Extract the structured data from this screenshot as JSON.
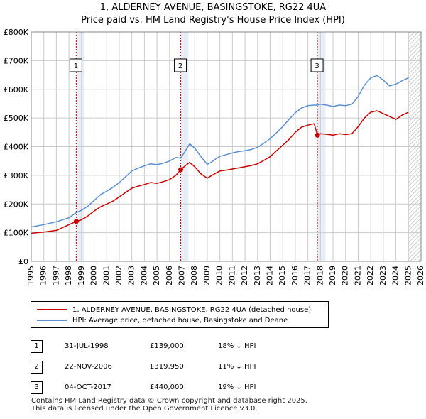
{
  "header": {
    "title": "1, ALDERNEY AVENUE, BASINGSTOKE, RG22 4UA",
    "subtitle": "Price paid vs. HM Land Registry's House Price Index (HPI)"
  },
  "colors": {
    "property": "#cc0000",
    "hpi": "#5b8fd4",
    "shade": "#e8eef8",
    "grid": "#cccccc"
  },
  "chart_data": {
    "type": "line",
    "title": "1, ALDERNEY AVENUE, BASINGSTOKE, RG22 4UA",
    "subtitle": "Price paid vs. HM Land Registry's House Price Index (HPI)",
    "xlim": [
      1995,
      2026
    ],
    "ylim": [
      0,
      800000
    ],
    "y_ticks": [
      0,
      100000,
      200000,
      300000,
      400000,
      500000,
      600000,
      700000,
      800000
    ],
    "y_tick_labels": [
      "£0",
      "£100K",
      "£200K",
      "£300K",
      "£400K",
      "£500K",
      "£600K",
      "£700K",
      "£800K"
    ],
    "x_ticks": [
      1995,
      1996,
      1997,
      1998,
      1999,
      2000,
      2001,
      2002,
      2003,
      2004,
      2005,
      2006,
      2007,
      2008,
      2009,
      2010,
      2011,
      2012,
      2013,
      2014,
      2015,
      2016,
      2017,
      2018,
      2019,
      2020,
      2021,
      2022,
      2023,
      2024,
      2025,
      2026
    ],
    "x_tick_labels": [
      "1995",
      "1996",
      "1997",
      "1998",
      "1999",
      "2000",
      "2001",
      "2002",
      "2003",
      "2004",
      "2005",
      "2006",
      "2007",
      "2008",
      "2009",
      "2010",
      "2011",
      "2012",
      "2013",
      "2014",
      "2015",
      "2016",
      "2017",
      "2018",
      "2019",
      "2020",
      "2021",
      "2022",
      "2023",
      "2024",
      "2025",
      "2026"
    ],
    "grid": true,
    "series": [
      {
        "name": "1, ALDERNEY AVENUE, BASINGSTOKE, RG22 4UA (detached house)",
        "color": "#cc0000",
        "x": [
          1995.0,
          1996.0,
          1997.0,
          1997.5,
          1998.0,
          1998.58,
          1999.0,
          1999.5,
          2000.0,
          2000.5,
          2001.0,
          2001.5,
          2002.0,
          2002.5,
          2003.0,
          2003.5,
          2004.0,
          2004.5,
          2005.0,
          2005.5,
          2006.0,
          2006.5,
          2006.89,
          2007.3,
          2007.6,
          2008.0,
          2008.5,
          2009.0,
          2009.3,
          2009.7,
          2010.0,
          2010.5,
          2011.0,
          2011.5,
          2012.0,
          2012.5,
          2013.0,
          2013.5,
          2014.0,
          2014.5,
          2015.0,
          2015.5,
          2016.0,
          2016.5,
          2017.0,
          2017.5,
          2017.76,
          2018.0,
          2018.5,
          2019.0,
          2019.5,
          2020.0,
          2020.5,
          2021.0,
          2021.5,
          2022.0,
          2022.5,
          2023.0,
          2023.5,
          2024.0,
          2024.5,
          2025.0
        ],
        "values": [
          98000,
          102000,
          108000,
          118000,
          128000,
          139000,
          145000,
          158000,
          175000,
          190000,
          200000,
          210000,
          225000,
          240000,
          255000,
          262000,
          268000,
          275000,
          272000,
          278000,
          285000,
          300000,
          319950,
          335000,
          345000,
          330000,
          305000,
          290000,
          298000,
          308000,
          315000,
          318000,
          322000,
          326000,
          330000,
          334000,
          340000,
          352000,
          365000,
          385000,
          405000,
          425000,
          450000,
          468000,
          475000,
          480000,
          440000,
          445000,
          443000,
          440000,
          445000,
          442000,
          445000,
          470000,
          500000,
          520000,
          525000,
          515000,
          505000,
          495000,
          510000,
          520000
        ]
      },
      {
        "name": "HPI: Average price, detached house, Basingstoke and Deane",
        "color": "#5b8fd4",
        "x": [
          1995.0,
          1996.0,
          1997.0,
          1998.0,
          1998.58,
          1999.0,
          1999.5,
          2000.0,
          2000.5,
          2001.0,
          2001.5,
          2002.0,
          2002.5,
          2003.0,
          2003.5,
          2004.0,
          2004.5,
          2005.0,
          2005.5,
          2006.0,
          2006.5,
          2006.89,
          2007.3,
          2007.6,
          2008.0,
          2008.5,
          2009.0,
          2009.3,
          2009.7,
          2010.0,
          2010.5,
          2011.0,
          2011.5,
          2012.0,
          2012.5,
          2013.0,
          2013.5,
          2014.0,
          2014.5,
          2015.0,
          2015.5,
          2016.0,
          2016.5,
          2017.0,
          2017.5,
          2017.76,
          2018.0,
          2018.5,
          2019.0,
          2019.5,
          2020.0,
          2020.5,
          2021.0,
          2021.5,
          2022.0,
          2022.5,
          2023.0,
          2023.5,
          2024.0,
          2024.5,
          2025.0
        ],
        "values": [
          120000,
          128000,
          138000,
          152000,
          170000,
          178000,
          192000,
          212000,
          232000,
          245000,
          258000,
          275000,
          295000,
          315000,
          325000,
          333000,
          340000,
          337000,
          342000,
          350000,
          362000,
          360000,
          388000,
          410000,
          395000,
          365000,
          338000,
          345000,
          358000,
          366000,
          372000,
          378000,
          383000,
          386000,
          390000,
          398000,
          412000,
          428000,
          448000,
          470000,
          495000,
          518000,
          535000,
          543000,
          545000,
          545000,
          548000,
          545000,
          540000,
          545000,
          543000,
          548000,
          575000,
          615000,
          640000,
          648000,
          632000,
          612000,
          618000,
          630000,
          640000
        ]
      }
    ],
    "sales": [
      {
        "label": "1",
        "x": 1998.58,
        "value": 139000
      },
      {
        "label": "2",
        "x": 2006.89,
        "value": 319950
      },
      {
        "label": "3",
        "x": 2017.76,
        "value": 440000
      }
    ],
    "shaded_spans": [
      [
        1998.58,
        1999.2
      ],
      [
        2006.89,
        2007.5
      ],
      [
        2017.76,
        2018.4
      ]
    ],
    "hatched_from": 2025.0
  },
  "legend": {
    "property": "1, ALDERNEY AVENUE, BASINGSTOKE, RG22 4UA (detached house)",
    "hpi": "HPI: Average price, detached house, Basingstoke and Deane"
  },
  "sales_table": [
    {
      "num": "1",
      "date": "31-JUL-1998",
      "price": "£139,000",
      "delta": "18% ↓ HPI"
    },
    {
      "num": "2",
      "date": "22-NOV-2006",
      "price": "£319,950",
      "delta": "11% ↓ HPI"
    },
    {
      "num": "3",
      "date": "04-OCT-2017",
      "price": "£440,000",
      "delta": "19% ↓ HPI"
    }
  ],
  "footer": {
    "line1": "Contains HM Land Registry data © Crown copyright and database right 2025.",
    "line2": "This data is licensed under the Open Government Licence v3.0."
  }
}
